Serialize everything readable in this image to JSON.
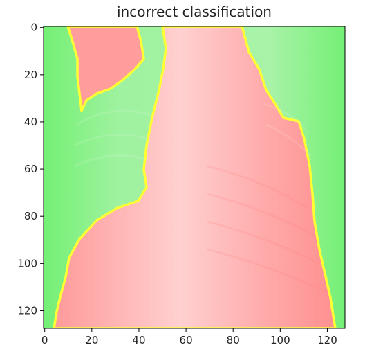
{
  "chart_data": {
    "type": "heatmap",
    "title": "incorrect classification",
    "xlabel": "",
    "ylabel": "",
    "xlim": [
      -0.5,
      127.5
    ],
    "ylim": [
      127.5,
      -0.5
    ],
    "x_ticks": [
      0,
      20,
      40,
      60,
      80,
      100,
      120
    ],
    "y_ticks": [
      0,
      20,
      40,
      60,
      80,
      100,
      120
    ],
    "grid": false,
    "image_size": [
      128,
      128
    ],
    "regions": [
      {
        "name": "",
        "color": "#7cf57c"
      },
      {
        "name": "",
        "color": "#ffb3b3"
      }
    ],
    "boundary_color": "#ffff33"
  }
}
